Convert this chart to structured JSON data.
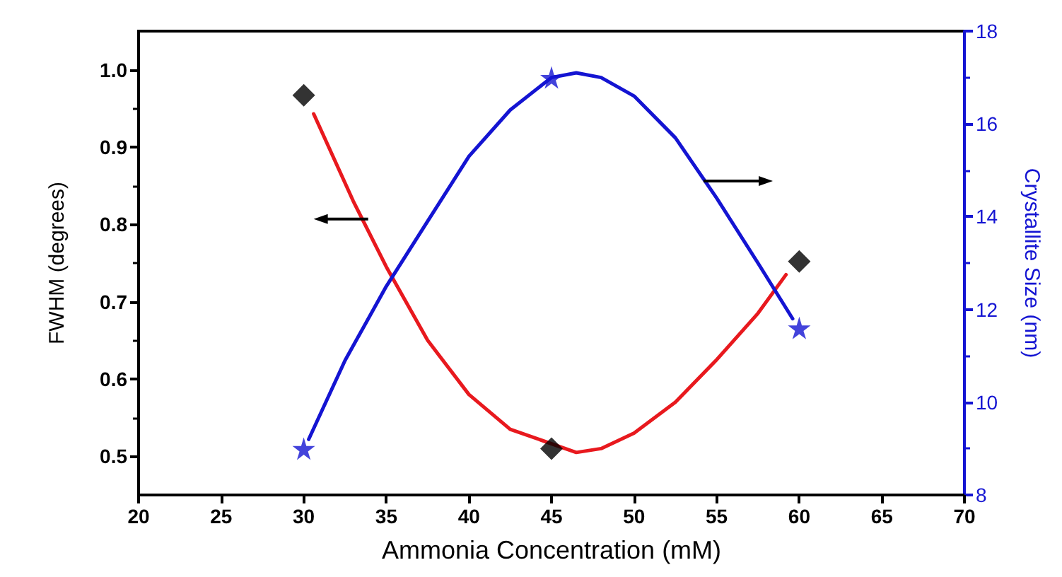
{
  "chart_data": {
    "type": "line",
    "xlabel": "Ammonia Concentration (mM)",
    "ylabel": "FWHM (degrees)",
    "y2label": "Crystallite Size (nm)",
    "xlim": [
      20,
      70
    ],
    "xticks": [
      20,
      25,
      30,
      35,
      40,
      45,
      50,
      55,
      60,
      65,
      70
    ],
    "ylim": [
      0.45,
      1.05
    ],
    "yticks": [
      {
        "value": 0.5,
        "label": "0.5"
      },
      {
        "value": 0.6,
        "label": "0.6"
      },
      {
        "value": 0.7,
        "label": "0.7"
      },
      {
        "value": 0.8,
        "label": "0.8"
      },
      {
        "value": 0.9,
        "label": "0.9"
      },
      {
        "value": 1.0,
        "label": "1.0"
      }
    ],
    "y2lim": [
      8,
      18
    ],
    "y2ticks": [
      8,
      10,
      12,
      14,
      16,
      18
    ],
    "grid": false,
    "series": [
      {
        "type": "scatter",
        "marker": "diamond",
        "color": "#000000",
        "x": [
          30,
          45,
          60
        ],
        "values": [
          0.967,
          0.51,
          0.752
        ]
      },
      {
        "marker": "none",
        "color": "#e8191e",
        "x": [
          30.6,
          33,
          35,
          37.5,
          40,
          42.5,
          46.5,
          48,
          50,
          52.5,
          55,
          57.5,
          59.2
        ],
        "values": [
          0.943,
          0.83,
          0.745,
          0.65,
          0.58,
          0.535,
          0.505,
          0.51,
          0.53,
          0.57,
          0.625,
          0.685,
          0.735
        ]
      },
      {
        "marker": "none",
        "axis": "y2",
        "color": "#1414d2",
        "x": [
          30.3,
          32.5,
          35,
          37.5,
          40,
          42.5,
          45,
          46.5,
          48,
          50,
          52.5,
          55,
          57.5,
          59.6
        ],
        "values": [
          9.2,
          10.9,
          12.5,
          13.9,
          15.3,
          16.3,
          17.0,
          17.1,
          17.0,
          16.6,
          15.7,
          14.4,
          13.0,
          11.8
        ]
      },
      {
        "type": "scatter",
        "marker": "star",
        "axis": "y2",
        "color": "#1414d2",
        "x": [
          30,
          45,
          60
        ],
        "values": [
          9.0,
          17.0,
          11.6
        ]
      }
    ]
  }
}
